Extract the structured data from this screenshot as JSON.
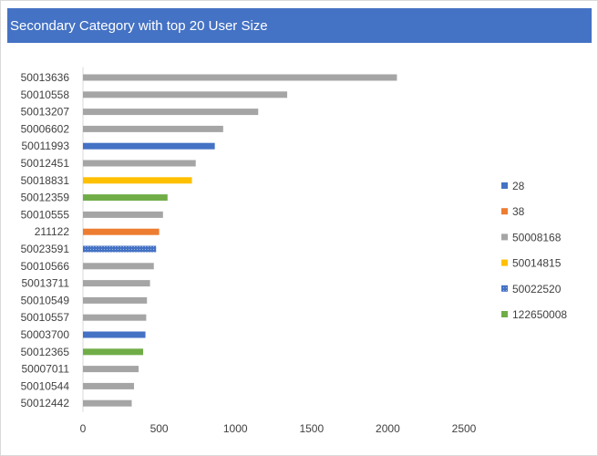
{
  "chart_data": {
    "type": "bar",
    "orientation": "horizontal",
    "title": "Secondary Category with top 20 User Size",
    "xlim": [
      0,
      2500
    ],
    "xticks": [
      0,
      500,
      1000,
      1500,
      2000,
      2500
    ],
    "grid": false,
    "legend_position": "right",
    "categories": [
      "50013636",
      "50010558",
      "50013207",
      "50006602",
      "50011993",
      "50012451",
      "50018831",
      "50012359",
      "50010555",
      "211122",
      "50023591",
      "50010566",
      "50013711",
      "50010549",
      "50010557",
      "50003700",
      "50012365",
      "50007011",
      "50010544",
      "50012442"
    ],
    "values": [
      2060,
      1340,
      1150,
      920,
      865,
      740,
      715,
      555,
      525,
      500,
      480,
      465,
      440,
      420,
      415,
      410,
      395,
      365,
      335,
      320
    ],
    "groups": [
      "50008168",
      "50008168",
      "50008168",
      "50008168",
      "28",
      "50008168",
      "50014815",
      "122650008",
      "50008168",
      "38",
      "50022520",
      "50008168",
      "50008168",
      "50008168",
      "50008168",
      "28",
      "122650008",
      "50008168",
      "50008168",
      "50008168"
    ],
    "legend": [
      {
        "name": "28",
        "color": "#4472c4"
      },
      {
        "name": "38",
        "color": "#ed7d31"
      },
      {
        "name": "50008168",
        "color": "#a5a5a5"
      },
      {
        "name": "50014815",
        "color": "#ffc000"
      },
      {
        "name": "50022520",
        "color": "#4472c4",
        "pattern": "dotted"
      },
      {
        "name": "122650008",
        "color": "#70ad47"
      }
    ]
  }
}
